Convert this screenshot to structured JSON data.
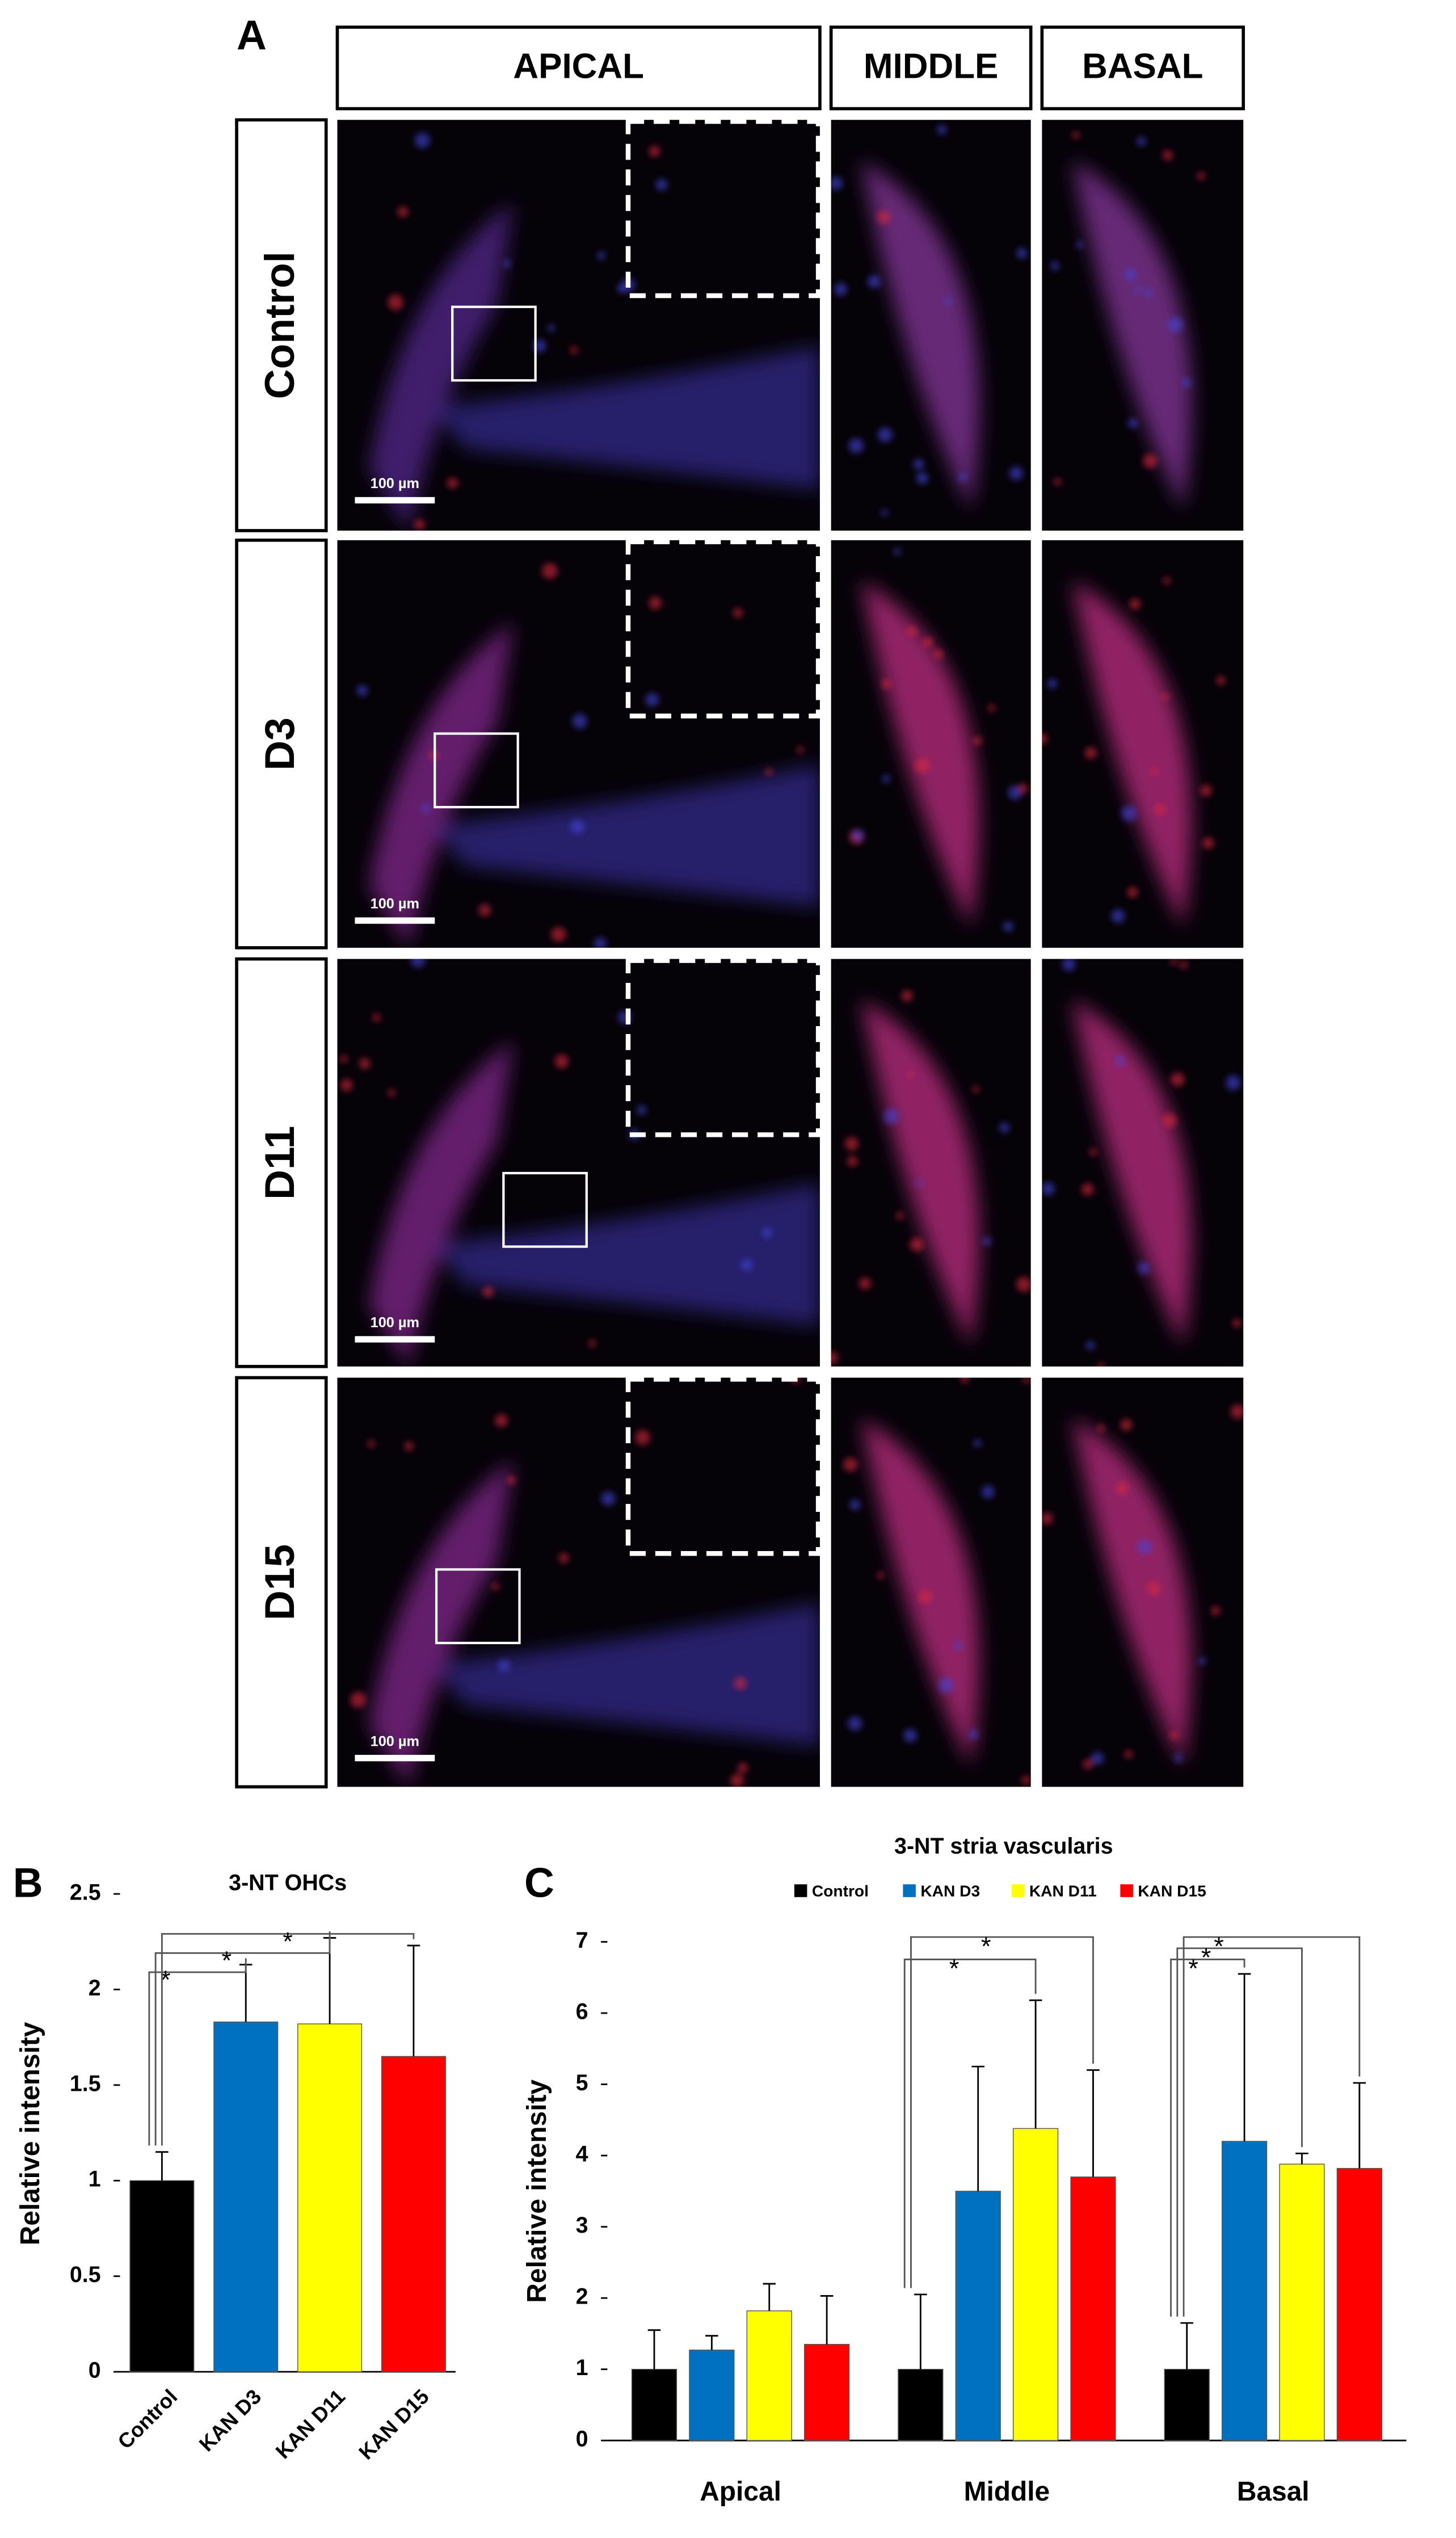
{
  "panel_a": {
    "label": "A",
    "columns": [
      "APICAL",
      "MIDDLE",
      "BASAL"
    ],
    "rows": [
      "Control",
      "D3",
      "D11",
      "D15"
    ],
    "scale_bar": "100 µm"
  },
  "chart_data": [
    {
      "type": "bar",
      "panel_label": "B",
      "title": "3-NT OHCs",
      "y_label": "Relative intensity",
      "categories": [
        "Control",
        "KAN D3",
        "KAN D11",
        "KAN D15"
      ],
      "values": [
        1.0,
        1.83,
        1.82,
        1.65
      ],
      "errors": [
        0.15,
        0.3,
        0.45,
        0.58
      ],
      "colors": [
        "#000000",
        "#0070c0",
        "#ffff00",
        "#ff0000"
      ],
      "ylim": [
        0,
        2.5
      ],
      "yticks": [
        0,
        0.5,
        1,
        1.5,
        2,
        2.5
      ],
      "annotations": [
        "*",
        "*",
        "*"
      ]
    },
    {
      "type": "grouped_bar",
      "panel_label": "C",
      "title": "3-NT  stria vascularis",
      "y_label": "Relative intensity",
      "categories": [
        "Apical",
        "Middle",
        "Basal"
      ],
      "series": [
        {
          "name": "Control",
          "color": "#000000",
          "values": [
            1.0,
            1.0,
            1.0
          ],
          "errors": [
            0.55,
            1.05,
            0.65
          ]
        },
        {
          "name": "KAN D3",
          "color": "#0070c0",
          "values": [
            1.27,
            3.5,
            4.2
          ],
          "errors": [
            0.2,
            1.75,
            2.35
          ]
        },
        {
          "name": "KAN D11",
          "color": "#ffff00",
          "values": [
            1.82,
            4.38,
            3.88
          ],
          "errors": [
            0.38,
            1.8,
            0.15
          ]
        },
        {
          "name": "KAN D15",
          "color": "#ff0000",
          "values": [
            1.35,
            3.7,
            3.82
          ],
          "errors": [
            0.68,
            1.5,
            1.2
          ]
        }
      ],
      "ylim": [
        0,
        7
      ],
      "yticks": [
        0,
        1,
        2,
        3,
        4,
        5,
        6,
        7
      ],
      "legend": "top",
      "annotations": [
        [],
        [
          "*",
          "*"
        ],
        [
          "*",
          "*",
          "*"
        ]
      ]
    }
  ]
}
